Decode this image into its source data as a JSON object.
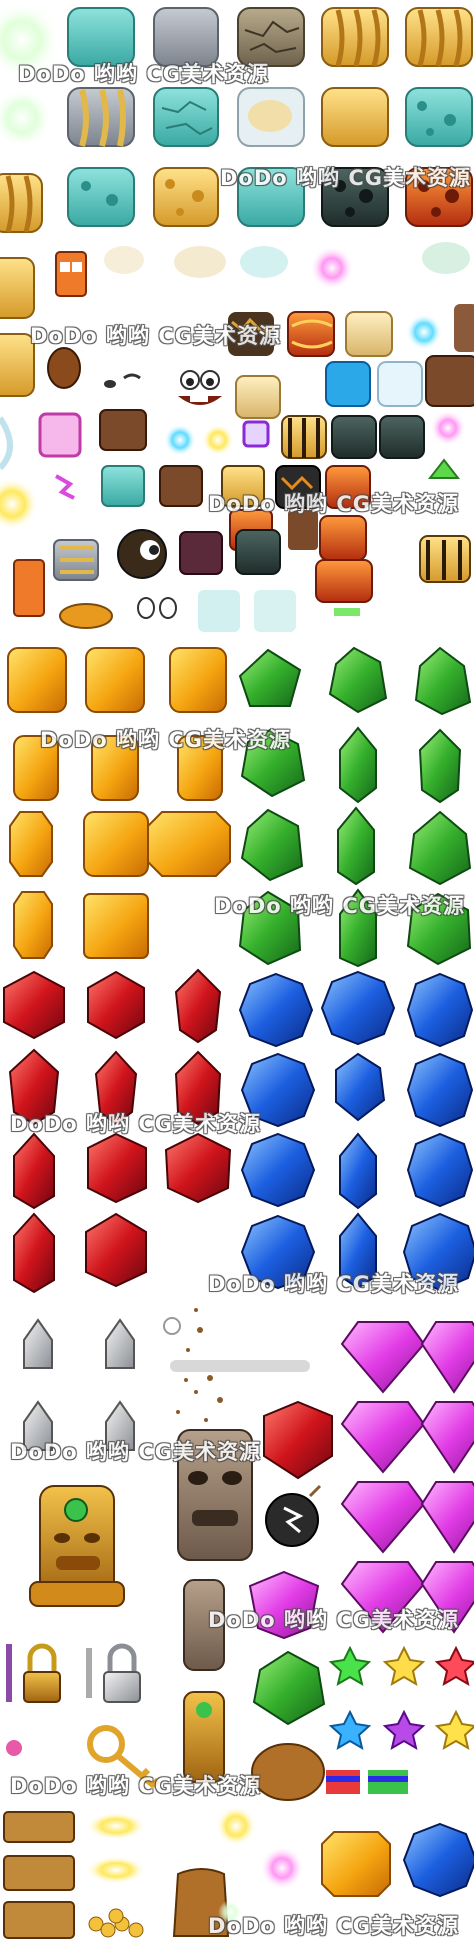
{
  "watermark": {
    "text": "DoDo 哟哟 CG美术资源"
  },
  "palette": {
    "teal": "#5fc7c0",
    "gold": "#e8b84a",
    "stone": "#9aa0a8",
    "lava": "#d8531e",
    "dark": "#2e3f3c",
    "sand": "#e8cc88",
    "amber_gem": "#f4a814",
    "green_gem": "#35b02c",
    "red_gem": "#c8141c",
    "blue_gem": "#1c5fe0",
    "pink_gem": "#e23ce6"
  },
  "sprites": {
    "block_tiles_rows": 3,
    "gem_colors": [
      "amber",
      "green",
      "red",
      "blue",
      "pink"
    ]
  }
}
